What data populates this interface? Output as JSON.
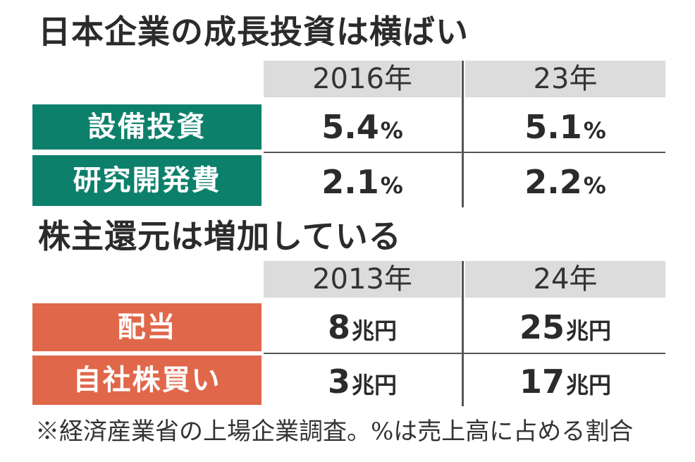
{
  "chart_data": [
    {
      "type": "table",
      "title": "日本企業の成長投資は横ばい",
      "columns": [
        "2016年",
        "23年"
      ],
      "rows": [
        {
          "label": "設備投資",
          "values": [
            "5.4",
            "5.1"
          ],
          "unit": "%"
        },
        {
          "label": "研究開発費",
          "values": [
            "2.1",
            "2.2"
          ],
          "unit": "%"
        }
      ],
      "label_color": "#0d806b"
    },
    {
      "type": "table",
      "title": "株主還元は増加している",
      "columns": [
        "2013年",
        "24年"
      ],
      "rows": [
        {
          "label": "配当",
          "values": [
            "8",
            "25"
          ],
          "unit": "兆円"
        },
        {
          "label": "自社株買い",
          "values": [
            "3",
            "17"
          ],
          "unit": "兆円"
        }
      ],
      "label_color": "#e0674a"
    }
  ],
  "footnote": "※経済産業省の上場企業調査。%は売上高に占める割合",
  "colors": {
    "header_bg": "#dcdcdc",
    "green": "#0d806b",
    "orange": "#e0674a"
  }
}
